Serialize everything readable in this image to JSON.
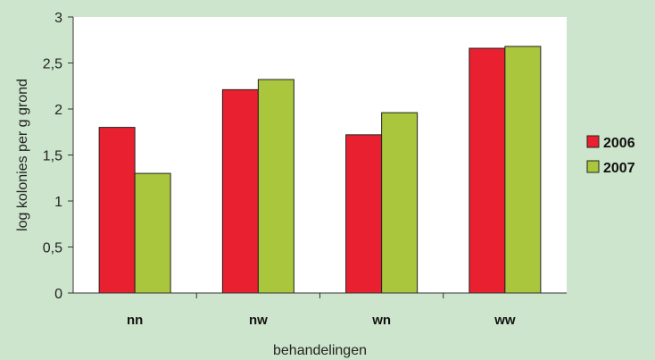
{
  "colors": {
    "background": "#cde5cc",
    "plot_area": "#ffffff",
    "series_2006": "#e8202f",
    "series_2007": "#a9c63c"
  },
  "chart_data": {
    "type": "bar",
    "categories": [
      "nn",
      "nw",
      "wn",
      "ww"
    ],
    "series": [
      {
        "name": "2006",
        "values": [
          1.8,
          2.21,
          1.72,
          2.66
        ]
      },
      {
        "name": "2007",
        "values": [
          1.3,
          2.32,
          1.96,
          2.68
        ]
      }
    ],
    "xlabel": "behandelingen",
    "ylabel": "log kolonies per g grond",
    "ylim": [
      0,
      3
    ],
    "yticks": [
      "0",
      "0,5",
      "1",
      "1,5",
      "2",
      "2,5",
      "3"
    ],
    "grid": false,
    "legend": "right"
  }
}
